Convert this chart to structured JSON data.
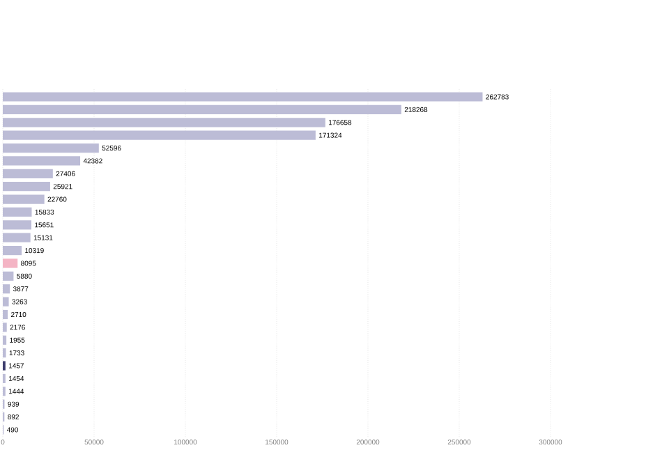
{
  "chart_data": {
    "type": "bar",
    "orientation": "horizontal",
    "categories": [
      null,
      null,
      null,
      null,
      null,
      null,
      null,
      null,
      null,
      null,
      null,
      null,
      null,
      null,
      null,
      null,
      null,
      null,
      null,
      null,
      null,
      null,
      null,
      null,
      null,
      null,
      null
    ],
    "values": [
      262783,
      218268,
      176658,
      171324,
      52596,
      42382,
      27406,
      25921,
      22760,
      15833,
      15651,
      15131,
      10319,
      8095,
      5880,
      3877,
      3263,
      2710,
      2176,
      1955,
      1733,
      1457,
      1454,
      1444,
      939,
      892,
      490
    ],
    "colors": [
      "#bcbcd6",
      "#bcbcd6",
      "#bcbcd6",
      "#bcbcd6",
      "#bcbcd6",
      "#bcbcd6",
      "#bcbcd6",
      "#bcbcd6",
      "#bcbcd6",
      "#bcbcd6",
      "#bcbcd6",
      "#bcbcd6",
      "#bcbcd6",
      "#f4b4c4",
      "#bcbcd6",
      "#bcbcd6",
      "#bcbcd6",
      "#bcbcd6",
      "#bcbcd6",
      "#bcbcd6",
      "#bcbcd6",
      "#3c3c6c",
      "#bcbcd6",
      "#bcbcd6",
      "#bcbcd6",
      "#bcbcd6",
      "#bcbcd6"
    ],
    "xlim": [
      0,
      300000
    ],
    "xticks": [
      0,
      50000,
      100000,
      150000,
      200000,
      250000,
      300000
    ],
    "grid": "x",
    "data_labels": true
  }
}
